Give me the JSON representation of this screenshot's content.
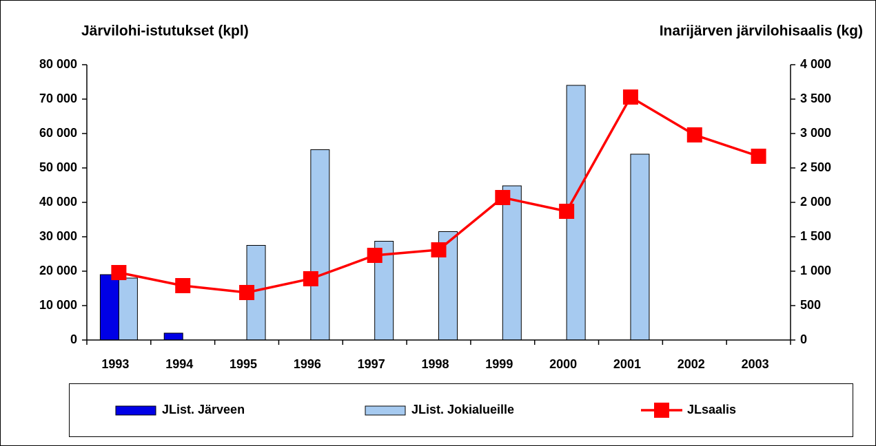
{
  "chart_data": {
    "type": "bar-line",
    "y_axis_title": "Järvilohi-istutukset (kpl)",
    "y2_axis_title": "Inarijärven järvilohisaalis (kg)",
    "categories": [
      "1993",
      "1994",
      "1995",
      "1996",
      "1997",
      "1998",
      "1999",
      "2000",
      "2001",
      "2002",
      "2003"
    ],
    "series": [
      {
        "name": "JList. Järveen",
        "type": "bar",
        "color": "#0000e6",
        "values": [
          19000,
          2000,
          null,
          null,
          null,
          null,
          null,
          null,
          null,
          null,
          null
        ]
      },
      {
        "name": "JList. Jokialueille",
        "type": "bar",
        "color": "#a6caf0",
        "values": [
          18000,
          null,
          27500,
          55300,
          28700,
          31500,
          44800,
          74000,
          54000,
          null,
          null
        ]
      },
      {
        "name": "JLsaalis",
        "type": "line",
        "axis": "y2",
        "color": "#ff0000",
        "values": [
          980,
          790,
          690,
          890,
          1230,
          1310,
          2070,
          1870,
          3530,
          2980,
          2670
        ]
      }
    ],
    "ylim": [
      0,
      80000
    ],
    "yticks": [
      0,
      {
        "value": 10000,
        "label": "10 000"
      },
      {
        "value": 20000,
        "label": "20 000"
      },
      {
        "value": 30000,
        "label": "30 000"
      },
      {
        "value": 40000,
        "label": "40 000"
      },
      {
        "value": 50000,
        "label": "50 000"
      },
      {
        "value": 60000,
        "label": "60 000"
      },
      {
        "value": 70000,
        "label": "70 000"
      },
      {
        "value": 80000,
        "label": "80 000"
      }
    ],
    "y2lim": [
      0,
      4000
    ],
    "y2ticks": [
      0,
      500,
      {
        "value": 1000,
        "label": "1 000"
      },
      {
        "value": 1500,
        "label": "1 500"
      },
      {
        "value": 2000,
        "label": "2 000"
      },
      {
        "value": 2500,
        "label": "2 500"
      },
      {
        "value": 3000,
        "label": "3 000"
      },
      {
        "value": 3500,
        "label": "3 500"
      },
      {
        "value": 4000,
        "label": "4 000"
      }
    ],
    "grid": false,
    "legend": "bottom"
  }
}
